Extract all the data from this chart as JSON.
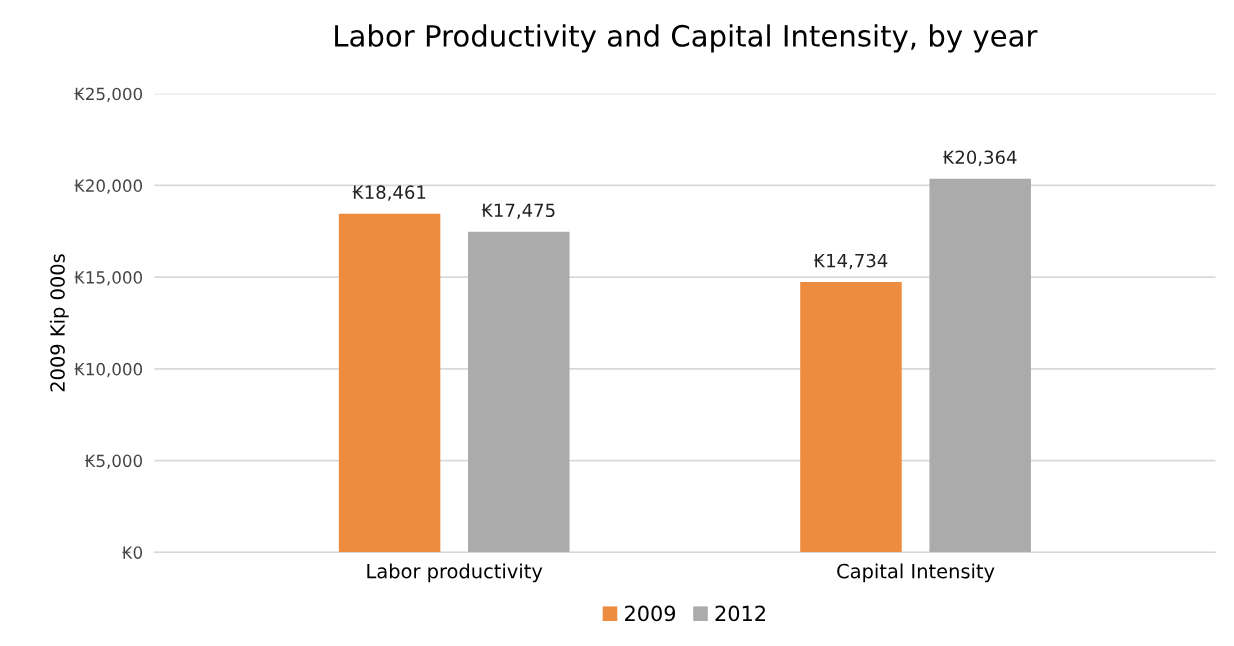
{
  "chart_data": {
    "type": "bar",
    "title": "Labor Productivity and Capital Intensity, by year",
    "ylabel": "2009 Kip 000s",
    "categories": [
      "Labor productivity",
      "Capital Intensity"
    ],
    "series": [
      {
        "name": "2009",
        "color": "#ed8b3f",
        "values": [
          18461,
          14734
        ],
        "value_labels": [
          "₭18,461",
          "₭14,734"
        ]
      },
      {
        "name": "2012",
        "color": "#ababab",
        "values": [
          17475,
          20364
        ],
        "value_labels": [
          "₭17,475",
          "₭20,364"
        ]
      }
    ],
    "ylim": [
      0,
      25000
    ],
    "yticks": [
      {
        "value": 0,
        "label": "₭0"
      },
      {
        "value": 5000,
        "label": "₭5,000"
      },
      {
        "value": 10000,
        "label": "₭10,000"
      },
      {
        "value": 15000,
        "label": "₭15,000"
      },
      {
        "value": 20000,
        "label": "₭20,000"
      },
      {
        "value": 25000,
        "label": "₭25,000"
      }
    ],
    "grid": "y",
    "legend": "bottom"
  }
}
